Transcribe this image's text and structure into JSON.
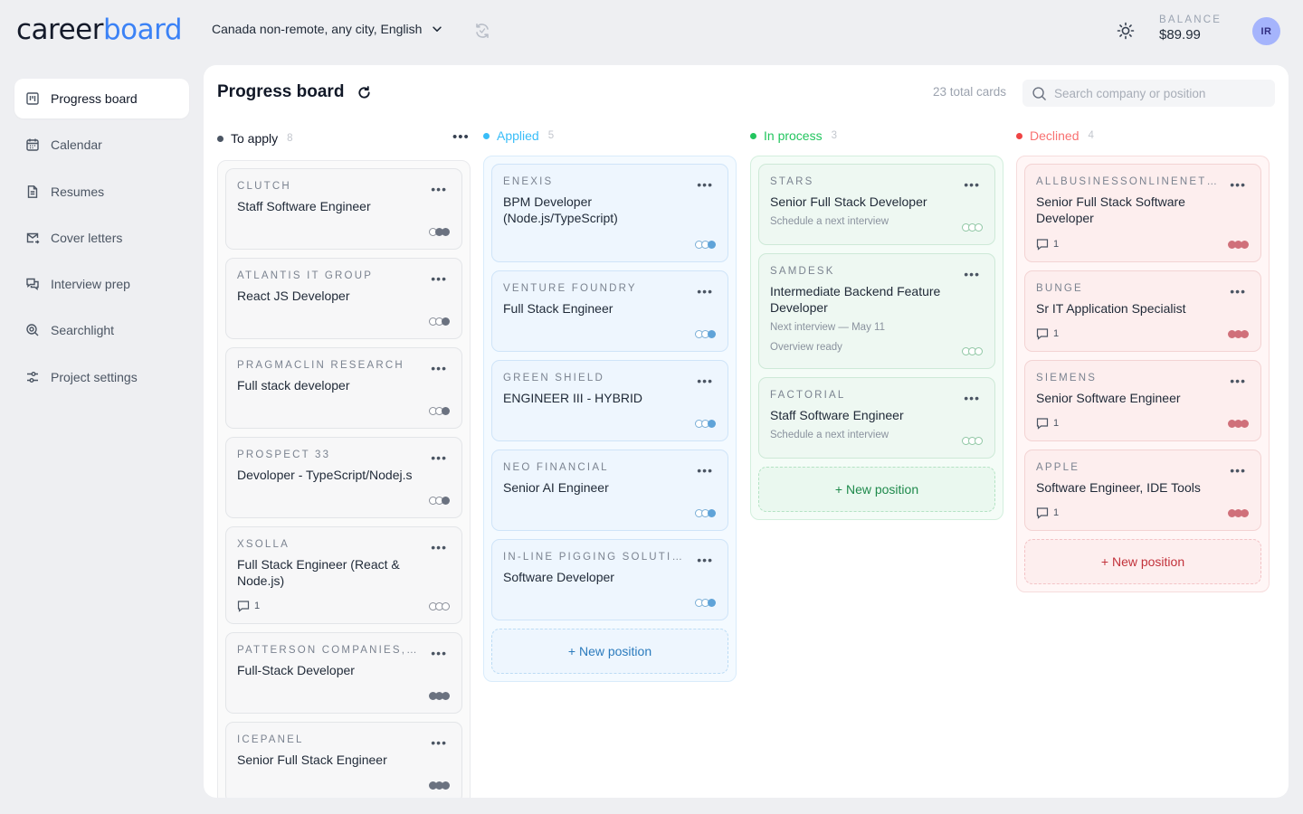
{
  "logo": {
    "part1": "career",
    "part2": "board"
  },
  "location": "Canada non-remote, any city, English",
  "balance": {
    "label": "BALANCE",
    "value": "$89.99"
  },
  "avatar": "IR",
  "sidebar": {
    "items": [
      {
        "label": "Progress board",
        "icon": "kanban-icon",
        "active": true
      },
      {
        "label": "Calendar",
        "icon": "calendar-icon"
      },
      {
        "label": "Resumes",
        "icon": "document-icon"
      },
      {
        "label": "Cover letters",
        "icon": "mail-icon"
      },
      {
        "label": "Interview prep",
        "icon": "chat-icon"
      },
      {
        "label": "Searchlight",
        "icon": "search-target-icon"
      },
      {
        "label": "Project settings",
        "icon": "sliders-icon"
      }
    ]
  },
  "board": {
    "title": "Progress board",
    "total": "23 total cards",
    "search_placeholder": "Search company or position"
  },
  "columns": [
    {
      "name": "To apply",
      "count": "8",
      "color": "#4b5563",
      "name_color": "#111827",
      "cards": [
        {
          "company": "CLUTCH",
          "role": "Staff Software Engineer"
        },
        {
          "company": "ATLANTIS IT GROUP",
          "role": "React JS Developer"
        },
        {
          "company": "PRAGMACLIN RESEARCH",
          "role": "Full stack developer"
        },
        {
          "company": "PROSPECT 33",
          "role": "Devoloper - TypeScript/Nodej.s"
        },
        {
          "company": "XSOLLA",
          "role": "Full Stack Engineer (React & Node.js)",
          "comments": "1"
        },
        {
          "company": "PATTERSON COMPANIES, INC.",
          "role": "Full-Stack Developer"
        },
        {
          "company": "ICEPANEL",
          "role": "Senior Full Stack Engineer"
        }
      ]
    },
    {
      "name": "Applied",
      "count": "5",
      "color": "#38bdf8",
      "name_color": "#38bdf8",
      "new_label": "+ New position",
      "cards": [
        {
          "company": "ENEXIS",
          "role": "BPM Developer (Node.js/TypeScript)"
        },
        {
          "company": "VENTURE FOUNDRY",
          "role": "Full Stack Engineer"
        },
        {
          "company": "GREEN SHIELD",
          "role": "ENGINEER III - HYBRID"
        },
        {
          "company": "NEO FINANCIAL",
          "role": "Senior AI Engineer"
        },
        {
          "company": "IN-LINE PIGGING SOLUTIONS",
          "role": "Software Developer"
        }
      ]
    },
    {
      "name": "In process",
      "count": "3",
      "color": "#22c55e",
      "name_color": "#22c55e",
      "new_label": "+ New position",
      "cards": [
        {
          "company": "STARS",
          "role": "Senior Full Stack Developer",
          "meta": [
            "Schedule a next interview"
          ]
        },
        {
          "company": "SAMDESK",
          "role": "Intermediate Backend Feature Developer",
          "meta": [
            "Next interview — May 11",
            "Overview ready"
          ]
        },
        {
          "company": "FACTORIAL",
          "role": "Staff Software Engineer",
          "meta": [
            "Schedule a next interview"
          ]
        }
      ]
    },
    {
      "name": "Declined",
      "count": "4",
      "color": "#ef4444",
      "name_color": "#f87171",
      "new_label": "+ New position",
      "cards": [
        {
          "company": "ALLBUSINESSONLINENETWORK",
          "role": "Senior Full Stack Software Developer",
          "comments": "1"
        },
        {
          "company": "BUNGE",
          "role": "Sr IT Application Specialist",
          "comments": "1"
        },
        {
          "company": "SIEMENS",
          "role": "Senior Software Engineer",
          "comments": "1"
        },
        {
          "company": "APPLE",
          "role": "Software Engineer, IDE Tools",
          "comments": "1"
        }
      ]
    }
  ]
}
